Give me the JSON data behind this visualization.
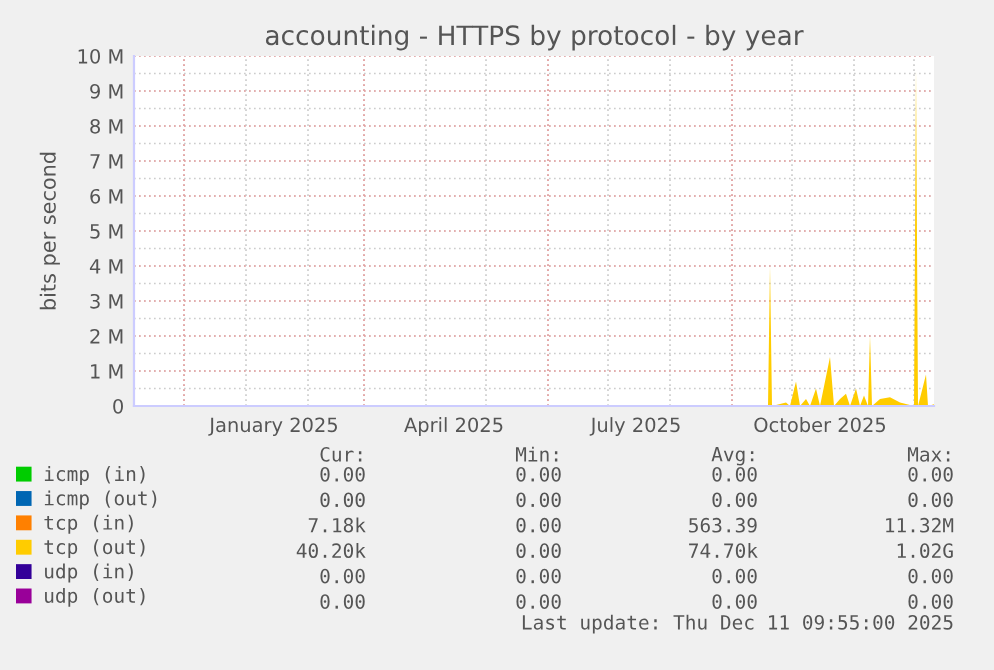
{
  "chart_data": {
    "type": "area",
    "title": "accounting - HTTPS by protocol - by year",
    "ylabel": "bits per second",
    "x": [
      "2024-11-06",
      "2025-09-19",
      "2025-09-20",
      "2025-09-21",
      "2025-09-28",
      "2025-09-30",
      "2025-10-03",
      "2025-10-05",
      "2025-10-08",
      "2025-10-10",
      "2025-10-13",
      "2025-10-15",
      "2025-10-20",
      "2025-10-22",
      "2025-10-25",
      "2025-10-28",
      "2025-10-30",
      "2025-11-02",
      "2025-11-04",
      "2025-11-06",
      "2025-11-08",
      "2025-11-09",
      "2025-11-10",
      "2025-11-14",
      "2025-11-19",
      "2025-11-24",
      "2025-12-01",
      "2025-12-02",
      "2025-12-03",
      "2025-12-07",
      "2025-12-08",
      "2025-12-11"
    ],
    "series": [
      {
        "name": "icmp (in)",
        "color": "#00cc00",
        "values": [
          null,
          null,
          null,
          null,
          null,
          null,
          null,
          null,
          null,
          null,
          null,
          null,
          null,
          null,
          null,
          null,
          null,
          null,
          null,
          null,
          null,
          null,
          null,
          null,
          null,
          null,
          null,
          null,
          null,
          null,
          null,
          null
        ]
      },
      {
        "name": "icmp (out)",
        "color": "#0066b3",
        "values": [
          null,
          null,
          null,
          null,
          null,
          null,
          null,
          null,
          null,
          null,
          null,
          null,
          null,
          null,
          null,
          null,
          null,
          null,
          null,
          null,
          null,
          null,
          null,
          null,
          null,
          null,
          null,
          null,
          null,
          null,
          null,
          null
        ]
      },
      {
        "name": "tcp (in)",
        "color": "#ff8000",
        "values": [
          null,
          null,
          null,
          null,
          null,
          null,
          null,
          null,
          null,
          null,
          null,
          null,
          null,
          null,
          null,
          null,
          null,
          null,
          null,
          null,
          null,
          null,
          null,
          null,
          null,
          null,
          null,
          null,
          null,
          null,
          null,
          null
        ]
      },
      {
        "name": "tcp (out)",
        "color": "#ffcc00",
        "values": [
          0,
          0,
          4000000,
          0,
          100000,
          0,
          700000,
          0,
          200000,
          0,
          500000,
          0,
          1400000,
          0,
          200000,
          350000,
          0,
          500000,
          0,
          300000,
          0,
          2000000,
          0,
          200000,
          250000,
          100000,
          0,
          9600000,
          0,
          900000,
          0,
          50000
        ]
      },
      {
        "name": "udp (in)",
        "color": "#330099",
        "values": [
          null,
          null,
          null,
          null,
          null,
          null,
          null,
          null,
          null,
          null,
          null,
          null,
          null,
          null,
          null,
          null,
          null,
          null,
          null,
          null,
          null,
          null,
          null,
          null,
          null,
          null,
          null,
          null,
          null,
          null,
          null,
          null
        ]
      },
      {
        "name": "udp (out)",
        "color": "#990099",
        "values": [
          null,
          null,
          null,
          null,
          null,
          null,
          null,
          null,
          null,
          null,
          null,
          null,
          null,
          null,
          null,
          null,
          null,
          null,
          null,
          null,
          null,
          null,
          null,
          null,
          null,
          null,
          null,
          null,
          null,
          null,
          null,
          null
        ]
      }
    ],
    "xlim": [
      "2024-11-06",
      "2025-12-11"
    ],
    "xticks": [
      {
        "value": "2024-12-01",
        "label": null
      },
      {
        "value": "2025-01-15",
        "label": "January 2025"
      },
      {
        "value": "2025-03-01",
        "label": null
      },
      {
        "value": "2025-04-15",
        "label": "April 2025"
      },
      {
        "value": "2025-06-01",
        "label": null
      },
      {
        "value": "2025-07-15",
        "label": "July 2025"
      },
      {
        "value": "2025-09-01",
        "label": null
      },
      {
        "value": "2025-10-15",
        "label": "October 2025"
      }
    ],
    "ylim": [
      0,
      10000000
    ],
    "yticks": [
      0,
      {
        "value": 1000000,
        "label": "1 M"
      },
      {
        "value": 2000000,
        "label": "2 M"
      },
      {
        "value": 3000000,
        "label": "3 M"
      },
      {
        "value": 4000000,
        "label": "4 M"
      },
      {
        "value": 5000000,
        "label": "5 M"
      },
      {
        "value": 6000000,
        "label": "6 M"
      },
      {
        "value": 7000000,
        "label": "7 M"
      },
      {
        "value": 8000000,
        "label": "8 M"
      },
      {
        "value": 9000000,
        "label": "9 M"
      },
      {
        "value": 10000000,
        "label": "10 M"
      }
    ],
    "grid": true,
    "legend": "bottom",
    "annotations": [
      "Cur:",
      "Min:",
      "Avg:",
      "Max:",
      "0.00",
      "0.00",
      "0.00",
      "0.00",
      "0.00",
      "0.00",
      "0.00",
      "0.00",
      "7.18k",
      "0.00",
      "563.39",
      "11.32M",
      "40.20k",
      "0.00",
      "74.70k",
      "1.02G",
      "0.00",
      "0.00",
      "0.00",
      "0.00",
      "0.00",
      "0.00",
      "0.00",
      "0.00",
      "Last update: Thu Dec 11 09:55:00 2025"
    ]
  }
}
